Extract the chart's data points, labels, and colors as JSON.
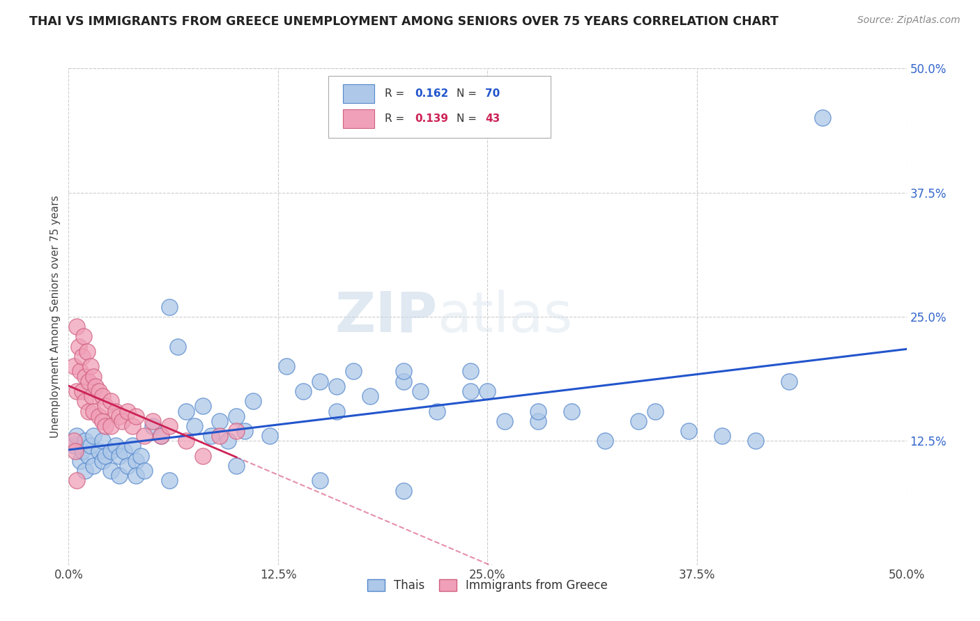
{
  "title": "THAI VS IMMIGRANTS FROM GREECE UNEMPLOYMENT AMONG SENIORS OVER 75 YEARS CORRELATION CHART",
  "source": "Source: ZipAtlas.com",
  "ylabel": "Unemployment Among Seniors over 75 years",
  "xlim": [
    0,
    0.5
  ],
  "ylim": [
    0,
    0.5
  ],
  "xtick_labels": [
    "0.0%",
    "12.5%",
    "25.0%",
    "37.5%",
    "50.0%"
  ],
  "xtick_values": [
    0,
    0.125,
    0.25,
    0.375,
    0.5
  ],
  "right_ytick_labels": [
    "12.5%",
    "25.0%",
    "37.5%",
    "50.0%"
  ],
  "right_ytick_values": [
    0.125,
    0.25,
    0.375,
    0.5
  ],
  "thai_R": 0.162,
  "thai_N": 70,
  "greece_R": 0.139,
  "greece_N": 43,
  "dot_color_thai": "#adc8e8",
  "dot_edge_thai": "#5588cc",
  "dot_color_greece": "#f0a0b8",
  "dot_edge_greece": "#d06080",
  "line_color_thai": "#2255cc",
  "line_color_greece": "#cc2255",
  "background_color": "#ffffff",
  "watermark_zip": "ZIP",
  "watermark_atlas": "atlas",
  "thai_x": [
    0.003,
    0.005,
    0.007,
    0.008,
    0.01,
    0.01,
    0.012,
    0.013,
    0.015,
    0.015,
    0.018,
    0.02,
    0.02,
    0.022,
    0.025,
    0.025,
    0.028,
    0.03,
    0.03,
    0.033,
    0.035,
    0.038,
    0.04,
    0.04,
    0.043,
    0.045,
    0.05,
    0.055,
    0.06,
    0.065,
    0.07,
    0.075,
    0.08,
    0.085,
    0.09,
    0.095,
    0.1,
    0.105,
    0.11,
    0.12,
    0.13,
    0.14,
    0.15,
    0.16,
    0.17,
    0.18,
    0.2,
    0.21,
    0.22,
    0.24,
    0.25,
    0.26,
    0.28,
    0.3,
    0.32,
    0.34,
    0.35,
    0.37,
    0.39,
    0.41,
    0.43,
    0.45,
    0.16,
    0.2,
    0.24,
    0.28,
    0.06,
    0.1,
    0.15,
    0.2
  ],
  "thai_y": [
    0.12,
    0.13,
    0.105,
    0.115,
    0.125,
    0.095,
    0.11,
    0.12,
    0.1,
    0.13,
    0.115,
    0.125,
    0.105,
    0.11,
    0.115,
    0.095,
    0.12,
    0.11,
    0.09,
    0.115,
    0.1,
    0.12,
    0.105,
    0.09,
    0.11,
    0.095,
    0.14,
    0.13,
    0.26,
    0.22,
    0.155,
    0.14,
    0.16,
    0.13,
    0.145,
    0.125,
    0.15,
    0.135,
    0.165,
    0.13,
    0.2,
    0.175,
    0.185,
    0.155,
    0.195,
    0.17,
    0.185,
    0.175,
    0.155,
    0.195,
    0.175,
    0.145,
    0.145,
    0.155,
    0.125,
    0.145,
    0.155,
    0.135,
    0.13,
    0.125,
    0.185,
    0.45,
    0.18,
    0.195,
    0.175,
    0.155,
    0.085,
    0.1,
    0.085,
    0.075
  ],
  "greece_x": [
    0.003,
    0.005,
    0.005,
    0.006,
    0.007,
    0.008,
    0.008,
    0.009,
    0.01,
    0.01,
    0.011,
    0.012,
    0.012,
    0.013,
    0.014,
    0.015,
    0.015,
    0.016,
    0.018,
    0.018,
    0.02,
    0.02,
    0.022,
    0.022,
    0.025,
    0.025,
    0.028,
    0.03,
    0.032,
    0.035,
    0.038,
    0.04,
    0.045,
    0.05,
    0.055,
    0.06,
    0.07,
    0.08,
    0.09,
    0.1,
    0.003,
    0.004,
    0.005
  ],
  "greece_y": [
    0.2,
    0.24,
    0.175,
    0.22,
    0.195,
    0.21,
    0.175,
    0.23,
    0.19,
    0.165,
    0.215,
    0.185,
    0.155,
    0.2,
    0.17,
    0.19,
    0.155,
    0.18,
    0.175,
    0.15,
    0.17,
    0.145,
    0.16,
    0.14,
    0.165,
    0.14,
    0.155,
    0.15,
    0.145,
    0.155,
    0.14,
    0.15,
    0.13,
    0.145,
    0.13,
    0.14,
    0.125,
    0.11,
    0.13,
    0.135,
    0.125,
    0.115,
    0.085
  ]
}
